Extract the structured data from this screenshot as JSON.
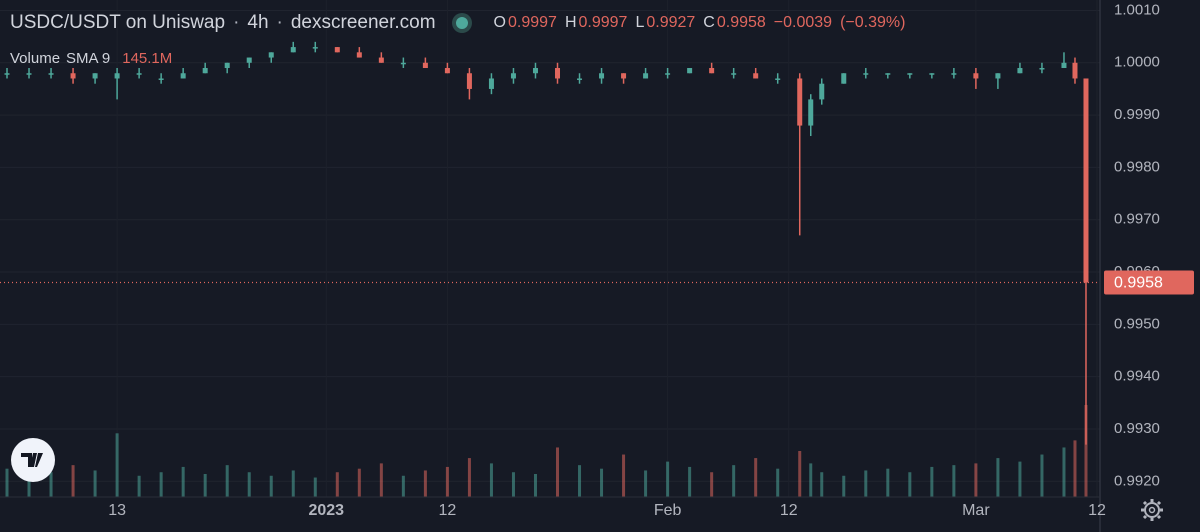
{
  "chart_data": {
    "type": "candlestick",
    "header": {
      "pair": "USDC/USDT on Uniswap",
      "interval": "4h",
      "source": "dexscreener.com"
    },
    "ohlc_legend": {
      "o_label": "O",
      "open": 0.9997,
      "h_label": "H",
      "high": 0.9997,
      "l_label": "L",
      "low": 0.9927,
      "c_label": "C",
      "close": 0.9958,
      "change": "−0.0039",
      "change_pct": "(−0.39%)"
    },
    "volume_legend": {
      "label": "Volume",
      "indicator": "SMA 9",
      "value": "145.1M"
    },
    "up_color": "#4ea89b",
    "down_color": "#e0675e",
    "x": [
      "2022-12-03",
      "2022-12-05",
      "2022-12-07",
      "2022-12-09",
      "2022-12-11",
      "2022-12-13",
      "2022-12-15",
      "2022-12-17",
      "2022-12-19",
      "2022-12-21",
      "2022-12-23",
      "2022-12-25",
      "2022-12-27",
      "2022-12-29",
      "2022-12-31",
      "2023-01-02",
      "2023-01-04",
      "2023-01-06",
      "2023-01-08",
      "2023-01-10",
      "2023-01-12",
      "2023-01-14",
      "2023-01-16",
      "2023-01-18",
      "2023-01-20",
      "2023-01-22",
      "2023-01-24",
      "2023-01-26",
      "2023-01-28",
      "2023-01-30",
      "2023-02-01",
      "2023-02-03",
      "2023-02-05",
      "2023-02-07",
      "2023-02-09",
      "2023-02-11",
      "2023-02-13",
      "2023-02-14",
      "2023-02-15",
      "2023-02-17",
      "2023-02-19",
      "2023-02-21",
      "2023-02-23",
      "2023-02-25",
      "2023-02-27",
      "2023-03-01",
      "2023-03-03",
      "2023-03-05",
      "2023-03-07",
      "2023-03-09",
      "2023-03-10",
      "2023-03-11"
    ],
    "open": [
      0.9998,
      0.9998,
      0.9998,
      0.9998,
      0.9997,
      0.9997,
      0.9998,
      0.9997,
      0.9997,
      0.9998,
      0.9999,
      1.0,
      1.0001,
      1.0002,
      1.0003,
      1.0003,
      1.0002,
      1.0001,
      1.0,
      1.0,
      0.9999,
      0.9998,
      0.9995,
      0.9997,
      0.9998,
      0.9999,
      0.9997,
      0.9997,
      0.9998,
      0.9997,
      0.9998,
      0.9998,
      0.9999,
      0.9998,
      0.9998,
      0.9997,
      0.9997,
      0.9988,
      0.9993,
      0.9996,
      0.9998,
      0.9998,
      0.9998,
      0.9998,
      0.9998,
      0.9998,
      0.9997,
      0.9998,
      0.9999,
      0.9999,
      1.0,
      0.9997
    ],
    "high": [
      0.9999,
      0.9999,
      0.9999,
      0.9999,
      0.9998,
      0.9999,
      0.9999,
      0.9998,
      0.9999,
      1.0,
      1.0,
      1.0001,
      1.0002,
      1.0004,
      1.0004,
      1.0003,
      1.0003,
      1.0002,
      1.0001,
      1.0001,
      1.0,
      0.9999,
      0.9998,
      0.9999,
      1.0,
      1.0,
      0.9998,
      0.9999,
      0.9998,
      0.9999,
      0.9999,
      0.9999,
      1.0,
      0.9999,
      0.9999,
      0.9998,
      0.9998,
      0.9994,
      0.9997,
      0.9998,
      0.9999,
      0.9998,
      0.9998,
      0.9998,
      0.9999,
      0.9999,
      0.9998,
      1.0,
      1.0,
      1.0002,
      1.0001,
      0.9997
    ],
    "low": [
      0.9997,
      0.9997,
      0.9997,
      0.9996,
      0.9996,
      0.9993,
      0.9997,
      0.9996,
      0.9997,
      0.9998,
      0.9998,
      0.9999,
      1.0,
      1.0002,
      1.0002,
      1.0002,
      1.0001,
      1.0,
      0.9999,
      0.9999,
      0.9998,
      0.9993,
      0.9994,
      0.9996,
      0.9997,
      0.9996,
      0.9996,
      0.9996,
      0.9996,
      0.9997,
      0.9997,
      0.9998,
      0.9998,
      0.9997,
      0.9997,
      0.9996,
      0.9967,
      0.9986,
      0.9992,
      0.9996,
      0.9997,
      0.9997,
      0.9997,
      0.9997,
      0.9997,
      0.9995,
      0.9995,
      0.9998,
      0.9998,
      0.9999,
      0.9996,
      0.9927
    ],
    "close": [
      0.9998,
      0.9998,
      0.9998,
      0.9997,
      0.9998,
      0.9998,
      0.9998,
      0.9997,
      0.9998,
      0.9999,
      1.0,
      1.0001,
      1.0002,
      1.0003,
      1.0003,
      1.0002,
      1.0001,
      1.0,
      1.0,
      0.9999,
      0.9998,
      0.9995,
      0.9997,
      0.9998,
      0.9999,
      0.9997,
      0.9997,
      0.9998,
      0.9997,
      0.9998,
      0.9998,
      0.9999,
      0.9998,
      0.9998,
      0.9997,
      0.9997,
      0.9988,
      0.9993,
      0.9996,
      0.9998,
      0.9998,
      0.9998,
      0.9998,
      0.9998,
      0.9998,
      0.9997,
      0.9998,
      0.9999,
      0.9999,
      1.0,
      0.9997,
      0.9958
    ],
    "volume": [
      80,
      60,
      70,
      90,
      75,
      180,
      60,
      70,
      85,
      65,
      90,
      70,
      60,
      75,
      55,
      70,
      80,
      95,
      60,
      75,
      85,
      110,
      95,
      70,
      65,
      140,
      90,
      80,
      120,
      75,
      100,
      85,
      70,
      90,
      110,
      80,
      130,
      95,
      70,
      60,
      75,
      80,
      70,
      85,
      90,
      95,
      110,
      100,
      120,
      140,
      160,
      260
    ],
    "last_price": 0.9958,
    "xlim": [
      "2022-12-03",
      "2023-03-12"
    ],
    "xticks": [
      {
        "value": "2022-12-13",
        "label": "13"
      },
      {
        "value": "2023-01-01",
        "label": "2023"
      },
      {
        "value": "2023-01-12",
        "label": "12"
      },
      {
        "value": "2023-02-01",
        "label": "Feb"
      },
      {
        "value": "2023-02-12",
        "label": "12"
      },
      {
        "value": "2023-03-01",
        "label": "Mar"
      },
      {
        "value": "2023-03-12",
        "label": "12"
      }
    ],
    "ylim": [
      0.9917,
      1.0012
    ],
    "yticks": [
      {
        "value": 1.001,
        "label": "1.0010"
      },
      {
        "value": 1,
        "label": "1.0000"
      },
      {
        "value": 0.999,
        "label": "0.9990"
      },
      {
        "value": 0.998,
        "label": "0.9980"
      },
      {
        "value": 0.997,
        "label": "0.9970"
      },
      {
        "value": 0.996,
        "label": "0.9960"
      },
      {
        "value": 0.995,
        "label": "0.9950"
      },
      {
        "value": 0.994,
        "label": "0.9940"
      },
      {
        "value": 0.993,
        "label": "0.9930"
      },
      {
        "value": 0.992,
        "label": "0.9920"
      }
    ],
    "grid": true
  }
}
